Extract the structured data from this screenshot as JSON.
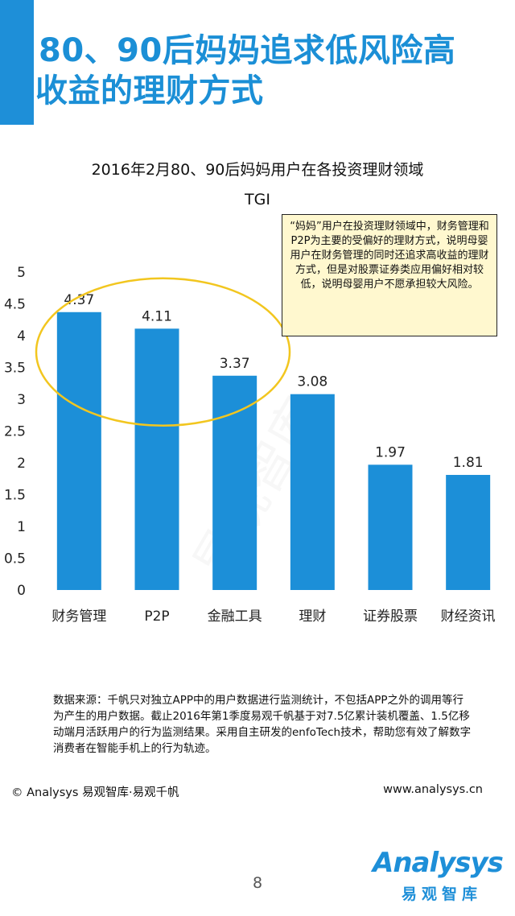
{
  "title": {
    "line1": "80、90后妈妈追求低风险高",
    "line2": "收益的理财方式"
  },
  "accent_color": "#1e8fd8",
  "watermark": "易观智库",
  "chart_data": {
    "type": "bar",
    "title_line1": "2016年2月80、90后妈妈用户在各投资理财领域",
    "title_line2": "TGI",
    "categories": [
      "财务管理",
      "P2P",
      "金融工具",
      "理财",
      "证券股票",
      "财经资讯"
    ],
    "values": [
      4.37,
      4.11,
      3.37,
      3.08,
      1.97,
      1.81
    ],
    "value_labels": [
      "4.37",
      "4.11",
      "3.37",
      "3.08",
      "1.97",
      "1.81"
    ],
    "ylim": [
      0,
      5
    ],
    "yticks": [
      "0",
      "0.5",
      "1",
      "1.5",
      "2",
      "2.5",
      "3",
      "3.5",
      "4",
      "4.5",
      "5"
    ],
    "bar_color": "#1c8fd8",
    "grid": false,
    "highlight_ellipse_color": "#f2c61f",
    "highlight_range": [
      0,
      2
    ]
  },
  "callout": {
    "text": "“妈妈”用户在投资理财领域中，财务管理和P2P为主要的受偏好的理财方式，说明母婴用户在财务管理的同时还追求高收益的理财方式，但是对股票证券类应用偏好相对较低，说明母婴用户不愿承担较大风险。"
  },
  "source": {
    "text": "数据来源：千帆只对独立APP中的用户数据进行监测统计，不包括APP之外的调用等行为产生的用户数据。截止2016年第1季度易观千帆基于对7.5亿累计装机覆盖、1.5亿移动端月活跃用户的行为监测结果。采用自主研发的enfoTech技术，帮助您有效了解数字消费者在智能手机上的行为轨迹。"
  },
  "footer": {
    "copyright": "© Analysys 易观智库·易观千帆",
    "website": "www.analysys.cn",
    "page_number": "8",
    "logo_word": "Analysys",
    "logo_cn": "易观智库"
  }
}
